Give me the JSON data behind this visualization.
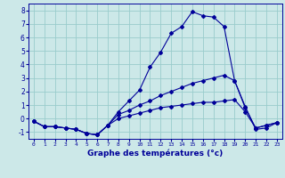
{
  "xlabel": "Graphe des températures (°c)",
  "ylim": [
    -1.5,
    8.5
  ],
  "xlim": [
    -0.5,
    23.5
  ],
  "yticks": [
    -1,
    0,
    1,
    2,
    3,
    4,
    5,
    6,
    7,
    8
  ],
  "xticks": [
    0,
    1,
    2,
    3,
    4,
    5,
    6,
    7,
    8,
    9,
    10,
    11,
    12,
    13,
    14,
    15,
    16,
    17,
    18,
    19,
    20,
    21,
    22,
    23
  ],
  "bg_color": "#cce8e8",
  "grid_color": "#99cccc",
  "line_color": "#000099",
  "line1_y": [
    -0.2,
    -0.6,
    -0.6,
    -0.7,
    -0.8,
    -1.1,
    -1.2,
    -0.5,
    0.5,
    1.3,
    2.1,
    3.8,
    4.9,
    6.3,
    6.8,
    7.9,
    7.6,
    7.5,
    6.8,
    2.8,
    0.9,
    -0.8,
    -0.7,
    -0.3
  ],
  "line2_y": [
    -0.2,
    -0.6,
    -0.6,
    -0.7,
    -0.8,
    -1.1,
    -1.2,
    -0.5,
    0.3,
    0.6,
    1.0,
    1.3,
    1.7,
    2.0,
    2.3,
    2.6,
    2.8,
    3.0,
    3.2,
    2.8,
    0.8,
    -0.7,
    -0.5,
    -0.3
  ],
  "line3_y": [
    -0.2,
    -0.6,
    -0.6,
    -0.7,
    -0.8,
    -1.1,
    -1.2,
    -0.5,
    0.0,
    0.2,
    0.4,
    0.6,
    0.8,
    0.9,
    1.0,
    1.1,
    1.2,
    1.2,
    1.3,
    1.4,
    0.5,
    -0.7,
    -0.5,
    -0.3
  ]
}
